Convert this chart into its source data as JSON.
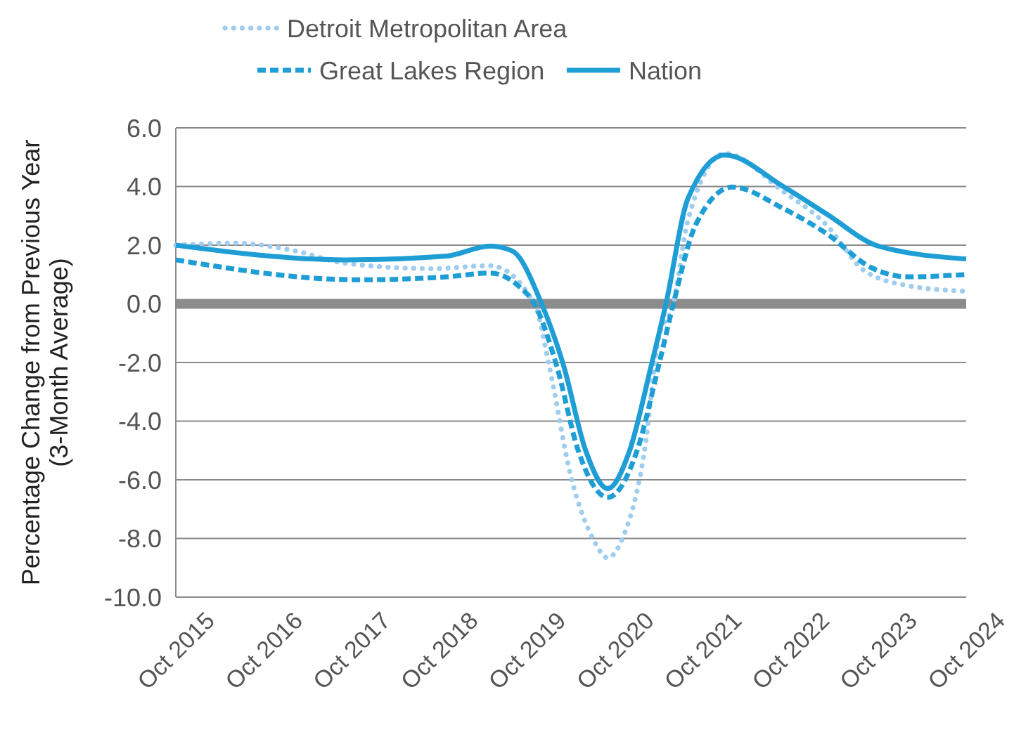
{
  "chart_data": {
    "type": "line",
    "ylabel": "Percentage Change from Previous Year\n(3-Month Average)",
    "xlim": [
      "2015-10",
      "2024-10"
    ],
    "xticks": [
      {
        "value": "2015-10",
        "label": "Oct 2015"
      },
      {
        "value": "2016-10",
        "label": "Oct 2016"
      },
      {
        "value": "2017-10",
        "label": "Oct 2017"
      },
      {
        "value": "2018-10",
        "label": "Oct 2018"
      },
      {
        "value": "2019-10",
        "label": "Oct 2019"
      },
      {
        "value": "2020-10",
        "label": "Oct 2020"
      },
      {
        "value": "2021-10",
        "label": "Oct 2021"
      },
      {
        "value": "2022-10",
        "label": "Oct 2022"
      },
      {
        "value": "2023-10",
        "label": "Oct 2023"
      },
      {
        "value": "2024-10",
        "label": "Oct 2024"
      }
    ],
    "ylim": [
      -10,
      6
    ],
    "yticks": [
      {
        "value": -10,
        "label": "-10.0"
      },
      {
        "value": -8,
        "label": "-8.0"
      },
      {
        "value": -6,
        "label": "-6.0"
      },
      {
        "value": -4,
        "label": "-4.0"
      },
      {
        "value": -2,
        "label": "-2.0"
      },
      {
        "value": 0,
        "label": "0.0"
      },
      {
        "value": 2,
        "label": "2.0"
      },
      {
        "value": 4,
        "label": "4.0"
      },
      {
        "value": 6,
        "label": "6.0"
      }
    ],
    "grid": "y",
    "legend": "top",
    "marker": "none",
    "ref_lines": [
      {
        "axis": "y",
        "value": 0,
        "color": "#8c8c8c"
      }
    ],
    "series": [
      {
        "name": "Detroit Metropolitan Area",
        "color": "#9ecdee",
        "line_style": "dotted",
        "x": [
          "2015-10",
          "2016-06",
          "2017-02",
          "2017-09",
          "2018-09",
          "2019-05",
          "2019-11",
          "2020-01",
          "2020-04",
          "2020-07",
          "2020-09",
          "2020-11",
          "2021-02",
          "2021-04",
          "2021-06",
          "2021-08",
          "2022-01",
          "2022-09",
          "2023-03",
          "2023-08",
          "2024-02",
          "2024-10"
        ],
        "values": [
          2.0,
          2.07,
          1.82,
          1.39,
          1.2,
          1.3,
          0,
          -2.1,
          -5.9,
          -8.0,
          -8.66,
          -8.0,
          -5.0,
          -1.15,
          0,
          2.87,
          5.13,
          3.83,
          2.68,
          1.15,
          0.62,
          0.43
        ]
      },
      {
        "name": "Great Lakes Region",
        "color": "#1f9ed6",
        "line_style": "dashed",
        "x": [
          "2015-10",
          "2017-11",
          "2018-11",
          "2019-05",
          "2019-09",
          "2019-11",
          "2020-02",
          "2020-05",
          "2020-09",
          "2021-01",
          "2021-04",
          "2021-06",
          "2021-09",
          "2022-02",
          "2022-09",
          "2023-03",
          "2023-09",
          "2024-02",
          "2024-10"
        ],
        "values": [
          1.5,
          0.82,
          0.92,
          1.05,
          0.57,
          0,
          -2.1,
          -5.0,
          -6.6,
          -5.0,
          -2.1,
          0,
          2.68,
          3.98,
          3.25,
          2.39,
          1.24,
          0.92,
          1.0
        ]
      },
      {
        "name": "Nation",
        "color": "#1f9ed6",
        "line_style": "solid",
        "x": [
          "2015-10",
          "2017-09",
          "2018-11",
          "2019-05",
          "2019-08",
          "2019-12",
          "2020-03",
          "2020-06",
          "2020-09",
          "2020-12",
          "2021-03",
          "2021-05",
          "2021-08",
          "2022-01",
          "2022-09",
          "2023-03",
          "2023-10",
          "2024-10"
        ],
        "values": [
          2.0,
          1.5,
          1.63,
          1.97,
          1.8,
          0,
          -2.1,
          -5.0,
          -6.3,
          -5.0,
          -2.1,
          0,
          3.6,
          5.07,
          4.0,
          3.06,
          1.97,
          1.53
        ]
      }
    ]
  }
}
